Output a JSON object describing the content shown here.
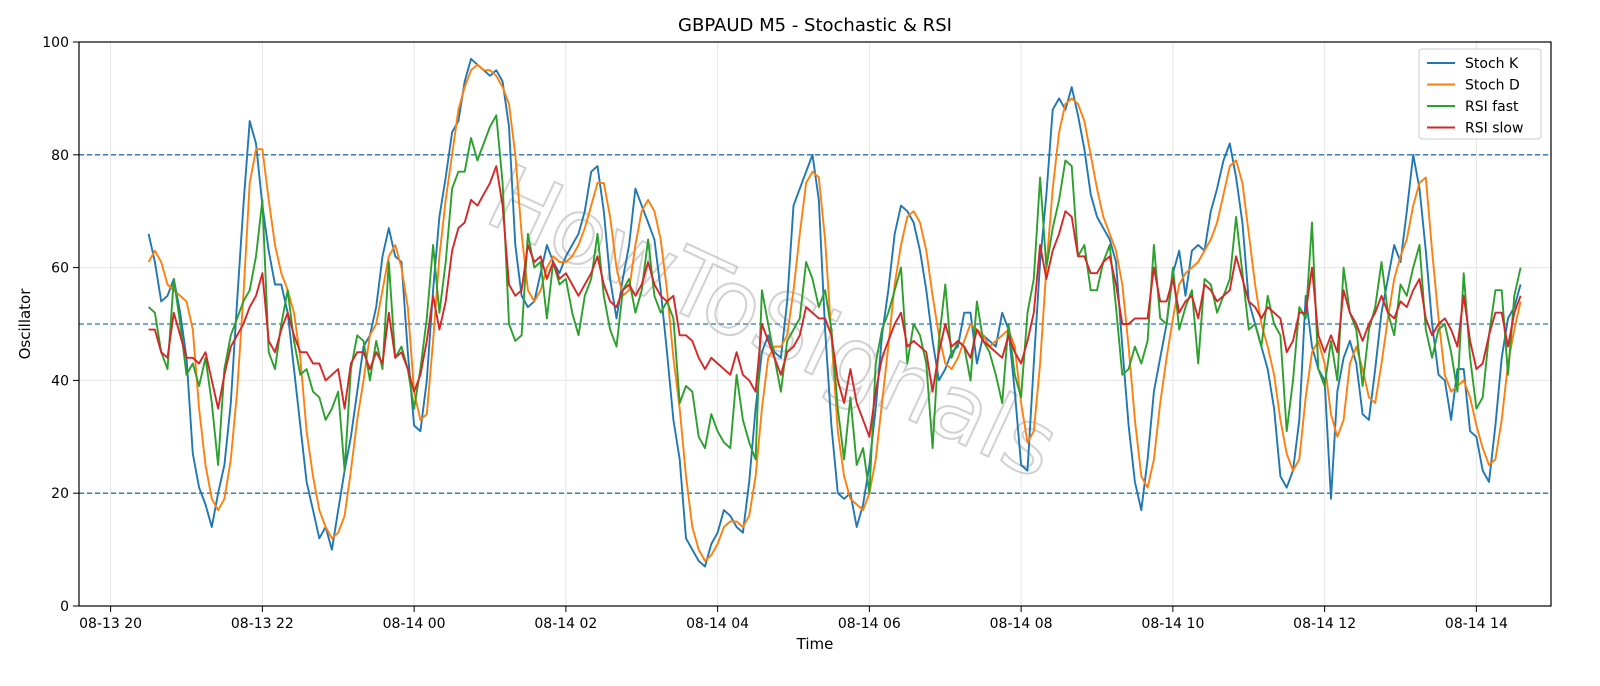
{
  "chart_data": {
    "type": "line",
    "title": "GBPAUD M5 - Stochastic & RSI",
    "xlabel": "Time",
    "ylabel": "Oscillator",
    "ylim": [
      0,
      100
    ],
    "yticks": [
      0,
      20,
      40,
      60,
      80,
      100
    ],
    "xticks": [
      "08-13 20",
      "08-13 22",
      "08-14 00",
      "08-14 02",
      "08-14 04",
      "08-14 06",
      "08-14 08",
      "08-14 10",
      "08-14 12",
      "08-14 14"
    ],
    "x_start": "08-13 20:30",
    "x_end": "08-14 14:35",
    "x_step_minutes": 5,
    "reference_lines": [
      20,
      50,
      80
    ],
    "grid": true,
    "legend_position": "top-right",
    "watermark": "HowToSignals",
    "series": [
      {
        "name": "Stoch K",
        "color": "#1f77b4",
        "values": [
          66,
          61,
          54,
          55,
          58,
          52,
          44,
          27,
          21,
          18,
          14,
          20,
          25,
          36,
          54,
          71,
          86,
          82,
          71,
          63,
          57,
          57,
          52,
          42,
          32,
          22,
          17,
          12,
          14,
          10,
          17,
          24,
          30,
          38,
          46,
          48,
          53,
          62,
          67,
          62,
          61,
          45,
          32,
          31,
          40,
          56,
          69,
          76,
          84,
          86,
          93,
          97,
          96,
          95,
          94,
          95,
          93,
          85,
          64,
          55,
          53,
          54,
          59,
          64,
          61,
          59,
          62,
          64,
          66,
          70,
          77,
          78,
          70,
          58,
          51,
          58,
          64,
          74,
          71,
          68,
          65,
          56,
          45,
          33,
          26,
          12,
          10,
          8,
          7,
          11,
          13,
          17,
          16,
          14,
          13,
          22,
          35,
          45,
          48,
          45,
          44,
          54,
          71,
          74,
          77,
          80,
          72,
          49,
          32,
          20,
          19,
          20,
          14,
          18,
          25,
          35,
          48,
          56,
          66,
          71,
          70,
          68,
          63,
          56,
          47,
          40,
          42,
          45,
          46,
          52,
          52,
          43,
          48,
          47,
          46,
          52,
          49,
          38,
          25,
          24,
          43,
          61,
          73,
          88,
          90,
          88,
          92,
          87,
          81,
          73,
          69,
          67,
          65,
          61,
          46,
          32,
          22,
          17,
          26,
          38,
          44,
          50,
          59,
          63,
          55,
          63,
          64,
          63,
          70,
          74,
          79,
          82,
          76,
          68,
          54,
          50,
          46,
          42,
          35,
          23,
          21,
          24,
          33,
          55,
          46,
          42,
          40,
          19,
          38,
          44,
          47,
          43,
          34,
          33,
          42,
          52,
          58,
          64,
          61,
          70,
          80,
          74,
          63,
          50,
          41,
          40,
          33,
          42,
          42,
          31,
          30,
          24,
          22,
          32,
          44,
          51,
          53,
          57
        ]
      },
      {
        "name": "Stoch D",
        "color": "#ff7f0e",
        "values": [
          61,
          63,
          61,
          57,
          56,
          55,
          54,
          49,
          35,
          25,
          19,
          17,
          19,
          26,
          38,
          55,
          75,
          81,
          81,
          72,
          64,
          59,
          56,
          52,
          44,
          31,
          23,
          17,
          14,
          12,
          13,
          16,
          24,
          33,
          40,
          48,
          50,
          56,
          62,
          64,
          60,
          53,
          38,
          33,
          34,
          47,
          62,
          72,
          80,
          88,
          92,
          95,
          96,
          95,
          95,
          94,
          92,
          89,
          80,
          66,
          56,
          54,
          56,
          60,
          62,
          61,
          61,
          62,
          64,
          67,
          71,
          75,
          75,
          69,
          60,
          55,
          56,
          64,
          70,
          72,
          70,
          65,
          56,
          44,
          35,
          23,
          14,
          10,
          8,
          9,
          11,
          14,
          15,
          15,
          14,
          16,
          23,
          35,
          44,
          46,
          46,
          48,
          56,
          66,
          75,
          77,
          76,
          65,
          48,
          31,
          23,
          19,
          18,
          17,
          20,
          26,
          36,
          46,
          57,
          64,
          69,
          70,
          68,
          63,
          55,
          48,
          43,
          42,
          44,
          47,
          50,
          49,
          48,
          46,
          47,
          48,
          49,
          46,
          36,
          29,
          31,
          43,
          60,
          74,
          84,
          89,
          90,
          89,
          86,
          80,
          74,
          69,
          66,
          63,
          57,
          46,
          33,
          23,
          21,
          26,
          36,
          44,
          51,
          57,
          59,
          60,
          61,
          63,
          65,
          68,
          73,
          78,
          79,
          75,
          66,
          57,
          50,
          46,
          41,
          33,
          27,
          24,
          26,
          37,
          45,
          47,
          43,
          34,
          30,
          33,
          43,
          46,
          42,
          37,
          36,
          43,
          51,
          58,
          62,
          65,
          71,
          75,
          76,
          63,
          51,
          41,
          38,
          39,
          40,
          37,
          32,
          28,
          25,
          26,
          33,
          43,
          49,
          54
        ]
      },
      {
        "name": "RSI fast",
        "color": "#2ca02c",
        "values": [
          53,
          52,
          45,
          42,
          58,
          50,
          41,
          43,
          39,
          44,
          36,
          25,
          42,
          48,
          51,
          54,
          56,
          62,
          72,
          45,
          42,
          50,
          56,
          47,
          41,
          42,
          38,
          37,
          33,
          35,
          38,
          24,
          42,
          48,
          47,
          40,
          47,
          42,
          61,
          44,
          46,
          42,
          35,
          42,
          51,
          64,
          52,
          61,
          74,
          77,
          77,
          83,
          79,
          82,
          85,
          87,
          75,
          50,
          47,
          48,
          66,
          60,
          61,
          51,
          61,
          57,
          58,
          52,
          48,
          55,
          58,
          66,
          55,
          49,
          46,
          56,
          58,
          52,
          56,
          65,
          55,
          52,
          54,
          51,
          36,
          39,
          38,
          30,
          28,
          34,
          31,
          29,
          28,
          41,
          33,
          29,
          26,
          56,
          50,
          44,
          38,
          47,
          49,
          51,
          61,
          58,
          53,
          56,
          49,
          35,
          26,
          37,
          25,
          28,
          20,
          43,
          49,
          52,
          56,
          60,
          43,
          50,
          48,
          43,
          28,
          47,
          57,
          44,
          47,
          46,
          40,
          54,
          47,
          45,
          41,
          36,
          50,
          41,
          37,
          52,
          58,
          76,
          60,
          67,
          72,
          79,
          78,
          62,
          64,
          56,
          56,
          61,
          64,
          53,
          41,
          42,
          46,
          43,
          47,
          64,
          51,
          50,
          60,
          49,
          53,
          56,
          43,
          58,
          57,
          52,
          55,
          58,
          69,
          59,
          49,
          50,
          46,
          55,
          50,
          48,
          31,
          40,
          53,
          51,
          68,
          42,
          39,
          47,
          40,
          60,
          52,
          49,
          39,
          49,
          53,
          61,
          52,
          48,
          57,
          55,
          60,
          64,
          49,
          44,
          49,
          50,
          45,
          38,
          59,
          44,
          35,
          37,
          48,
          56,
          56,
          41,
          55,
          60
        ]
      },
      {
        "name": "RSI slow",
        "color": "#d62728",
        "values": [
          49,
          49,
          45,
          44,
          52,
          48,
          44,
          44,
          43,
          45,
          40,
          35,
          41,
          46,
          48,
          50,
          53,
          55,
          59,
          47,
          45,
          49,
          52,
          48,
          45,
          45,
          43,
          43,
          40,
          41,
          42,
          35,
          43,
          45,
          45,
          42,
          45,
          43,
          52,
          44,
          45,
          42,
          38,
          41,
          47,
          55,
          49,
          54,
          63,
          67,
          68,
          72,
          71,
          73,
          75,
          78,
          71,
          57,
          55,
          56,
          64,
          61,
          62,
          58,
          61,
          58,
          59,
          57,
          55,
          57,
          59,
          62,
          57,
          54,
          53,
          56,
          57,
          55,
          57,
          61,
          57,
          55,
          54,
          55,
          48,
          48,
          47,
          44,
          42,
          44,
          43,
          42,
          41,
          45,
          41,
          40,
          38,
          50,
          47,
          44,
          41,
          45,
          46,
          48,
          53,
          52,
          51,
          51,
          48,
          40,
          36,
          42,
          36,
          33,
          30,
          38,
          44,
          47,
          50,
          52,
          46,
          47,
          46,
          45,
          38,
          45,
          50,
          46,
          47,
          46,
          44,
          49,
          47,
          46,
          45,
          44,
          48,
          45,
          43,
          47,
          52,
          64,
          58,
          63,
          66,
          70,
          69,
          62,
          62,
          59,
          59,
          61,
          62,
          57,
          50,
          50,
          51,
          51,
          51,
          60,
          54,
          54,
          58,
          52,
          54,
          55,
          51,
          57,
          56,
          54,
          55,
          56,
          62,
          58,
          54,
          53,
          51,
          53,
          52,
          51,
          45,
          47,
          52,
          52,
          60,
          48,
          45,
          48,
          45,
          56,
          52,
          50,
          47,
          50,
          52,
          55,
          52,
          51,
          54,
          53,
          56,
          58,
          51,
          48,
          50,
          51,
          49,
          46,
          55,
          47,
          42,
          43,
          48,
          52,
          52,
          46,
          52,
          55
        ]
      }
    ]
  }
}
